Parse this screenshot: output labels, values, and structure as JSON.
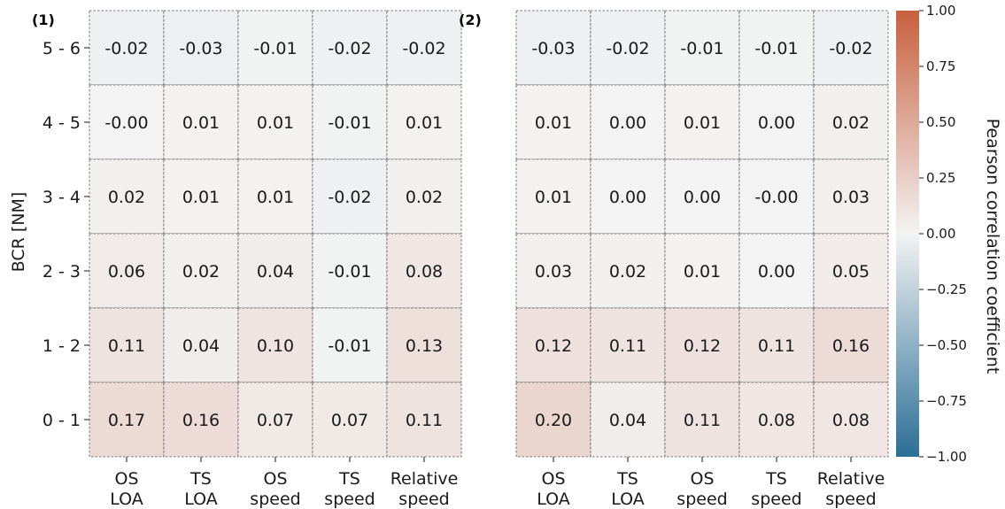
{
  "chart_data": {
    "type": "heatmap",
    "ylabel": "BCR [NM]",
    "rows": [
      "5 - 6",
      "4 - 5",
      "3 - 4",
      "2 - 3",
      "1 - 2",
      "0 - 1"
    ],
    "columns": [
      [
        "OS",
        "LOA"
      ],
      [
        "TS",
        "LOA"
      ],
      [
        "OS",
        "speed"
      ],
      [
        "TS",
        "speed"
      ],
      [
        "Relative",
        "speed"
      ]
    ],
    "colorbar": {
      "label": "Pearson correlation coefficient",
      "range": [
        -1.0,
        1.0
      ],
      "ticks": [
        "1.00",
        "0.75",
        "0.50",
        "0.25",
        "0.00",
        "−0.25",
        "−0.50",
        "−0.75",
        "−1.00"
      ],
      "low_color": "#2b6f96",
      "mid_color": "#f3f3f3",
      "high_color": "#c8603e"
    },
    "panels": [
      {
        "label": "(1)",
        "values": [
          [
            -0.02,
            -0.03,
            -0.01,
            -0.02,
            -0.02
          ],
          [
            -0.0,
            0.01,
            0.01,
            -0.01,
            0.01
          ],
          [
            0.02,
            0.01,
            0.01,
            -0.02,
            0.02
          ],
          [
            0.06,
            0.02,
            0.04,
            -0.01,
            0.08
          ],
          [
            0.11,
            0.04,
            0.1,
            -0.01,
            0.13
          ],
          [
            0.17,
            0.16,
            0.07,
            0.07,
            0.11
          ]
        ],
        "value_labels": [
          [
            "-0.02",
            "-0.03",
            "-0.01",
            "-0.02",
            "-0.02"
          ],
          [
            "-0.00",
            "0.01",
            "0.01",
            "-0.01",
            "0.01"
          ],
          [
            "0.02",
            "0.01",
            "0.01",
            "-0.02",
            "0.02"
          ],
          [
            "0.06",
            "0.02",
            "0.04",
            "-0.01",
            "0.08"
          ],
          [
            "0.11",
            "0.04",
            "0.10",
            "-0.01",
            "0.13"
          ],
          [
            "0.17",
            "0.16",
            "0.07",
            "0.07",
            "0.11"
          ]
        ]
      },
      {
        "label": "(2)",
        "values": [
          [
            -0.03,
            -0.02,
            -0.01,
            -0.01,
            -0.02
          ],
          [
            0.01,
            0.0,
            0.01,
            0.0,
            0.02
          ],
          [
            0.01,
            0.0,
            0.0,
            -0.0,
            0.03
          ],
          [
            0.03,
            0.02,
            0.01,
            0.0,
            0.05
          ],
          [
            0.12,
            0.11,
            0.12,
            0.11,
            0.16
          ],
          [
            0.2,
            0.04,
            0.11,
            0.08,
            0.08
          ]
        ],
        "value_labels": [
          [
            "-0.03",
            "-0.02",
            "-0.01",
            "-0.01",
            "-0.02"
          ],
          [
            "0.01",
            "0.00",
            "0.01",
            "0.00",
            "0.02"
          ],
          [
            "0.01",
            "0.00",
            "0.00",
            "-0.00",
            "0.03"
          ],
          [
            "0.03",
            "0.02",
            "0.01",
            "0.00",
            "0.05"
          ],
          [
            "0.12",
            "0.11",
            "0.12",
            "0.11",
            "0.16"
          ],
          [
            "0.20",
            "0.04",
            "0.11",
            "0.08",
            "0.08"
          ]
        ]
      }
    ]
  }
}
